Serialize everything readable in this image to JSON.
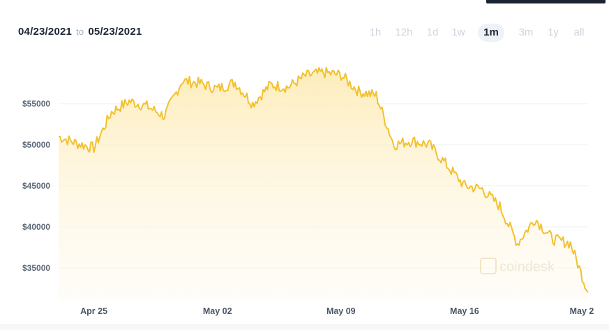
{
  "header": {
    "start_date": "04/23/2021",
    "to_label": "to",
    "end_date": "05/23/2021"
  },
  "ranges": [
    {
      "label": "1h",
      "active": false
    },
    {
      "label": "12h",
      "active": false
    },
    {
      "label": "1d",
      "active": false
    },
    {
      "label": "1w",
      "active": false
    },
    {
      "label": "1m",
      "active": true
    },
    {
      "label": "3m",
      "active": false
    },
    {
      "label": "1y",
      "active": false
    },
    {
      "label": "all",
      "active": false
    }
  ],
  "watermark": "coindesk",
  "colors": {
    "line": "#f2c12e",
    "fill_top": "#fdf0c6",
    "grid": "#eef0f3",
    "text": "#1c2533"
  },
  "chart_data": {
    "type": "area",
    "x_ticks": [
      "Apr 25",
      "May 02",
      "May 09",
      "May 16",
      "May 2"
    ],
    "y_ticks": [
      "$35000",
      "$40000",
      "$45000",
      "$50000",
      "$55000"
    ],
    "ylim": [
      31000,
      60000
    ],
    "grid": "horizontal",
    "x": [
      "2021-04-23",
      "2021-04-24",
      "2021-04-25",
      "2021-04-26",
      "2021-04-27",
      "2021-04-28",
      "2021-04-29",
      "2021-04-30",
      "2021-05-01",
      "2021-05-02",
      "2021-05-03",
      "2021-05-04",
      "2021-05-05",
      "2021-05-06",
      "2021-05-07",
      "2021-05-08",
      "2021-05-09",
      "2021-05-10",
      "2021-05-11",
      "2021-05-12",
      "2021-05-13",
      "2021-05-14",
      "2021-05-15",
      "2021-05-16",
      "2021-05-17",
      "2021-05-18",
      "2021-05-19",
      "2021-05-20",
      "2021-05-21",
      "2021-05-22",
      "2021-05-23"
    ],
    "values": [
      51000,
      50200,
      49600,
      54000,
      55300,
      54700,
      53500,
      57800,
      57500,
      56800,
      57600,
      55000,
      57300,
      57000,
      58400,
      58800,
      58500,
      56500,
      56000,
      50000,
      50500,
      50000,
      47500,
      45000,
      44600,
      42500,
      38000,
      41000,
      38500,
      38000,
      32000
    ]
  }
}
